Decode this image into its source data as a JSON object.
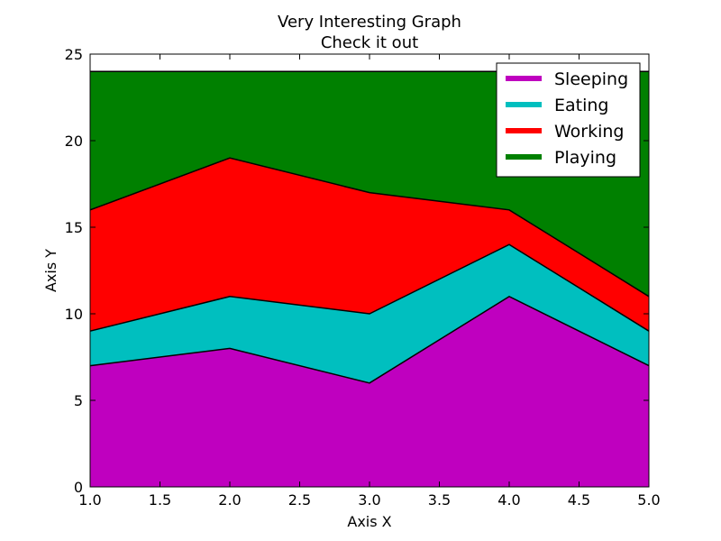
{
  "chart_data": {
    "type": "area",
    "stacked": true,
    "title": "Very Interesting Graph",
    "subtitle": "Check it out",
    "xlabel": "Axis X",
    "ylabel": "Axis Y",
    "x": [
      1,
      2,
      3,
      4,
      5
    ],
    "xlim": [
      1.0,
      5.0
    ],
    "ylim": [
      0,
      25
    ],
    "x_ticks": [
      "1.0",
      "1.5",
      "2.0",
      "2.5",
      "3.0",
      "3.5",
      "4.0",
      "4.5",
      "5.0"
    ],
    "y_ticks": [
      "0",
      "5",
      "10",
      "15",
      "20",
      "25"
    ],
    "grid": false,
    "legend_position": "top-right",
    "series": [
      {
        "name": "Sleeping",
        "color": "#bf00bf",
        "values": [
          7,
          8,
          6,
          11,
          7
        ]
      },
      {
        "name": "Eating",
        "color": "#00bfbf",
        "values": [
          2,
          3,
          4,
          3,
          2
        ]
      },
      {
        "name": "Working",
        "color": "#ff0000",
        "values": [
          7,
          8,
          7,
          2,
          2
        ]
      },
      {
        "name": "Playing",
        "color": "#008000",
        "values": [
          8,
          5,
          7,
          8,
          13
        ]
      }
    ]
  }
}
